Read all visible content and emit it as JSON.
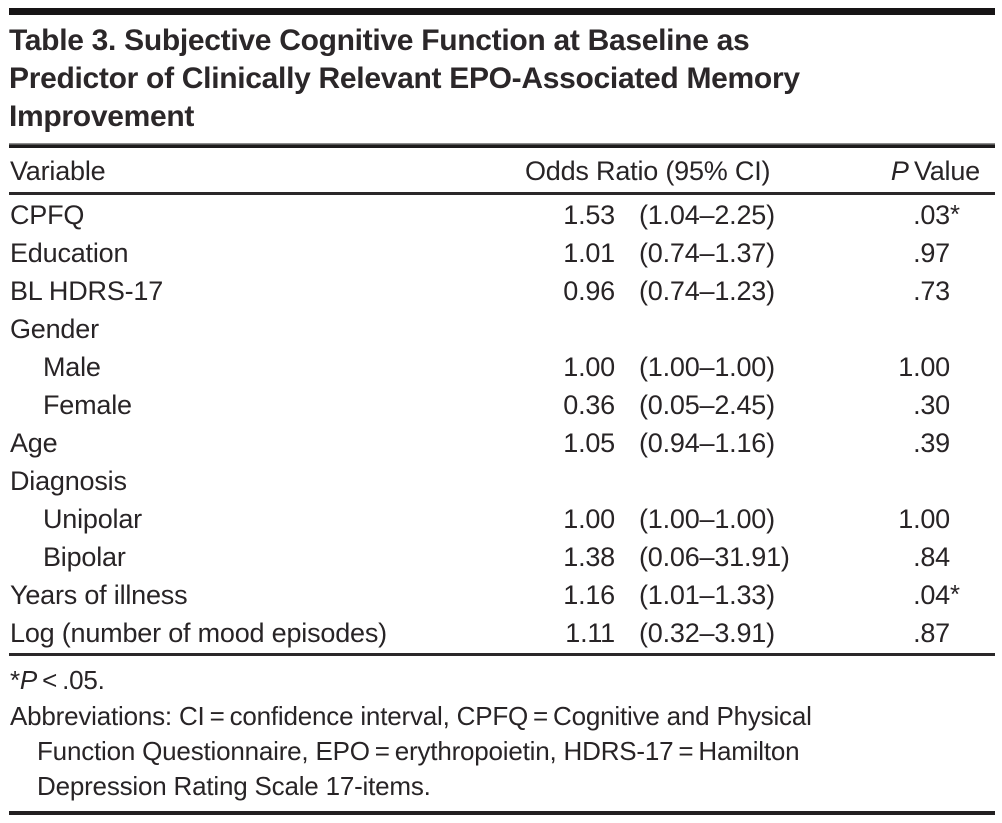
{
  "table": {
    "title_lines": [
      "Table 3. Subjective Cognitive Function at Baseline as",
      "Predictor of Clinically Relevant EPO-Associated Memory",
      "Improvement"
    ],
    "columns": {
      "variable": "Variable",
      "odds_ratio": "Odds Ratio (95% CI)",
      "p_italic": "P",
      "p_rest": " Value"
    },
    "rows": [
      {
        "variable": "CPFQ",
        "or": "1.53",
        "ci": "(1.04–2.25)",
        "p": ".03",
        "sig": "*"
      },
      {
        "variable": "Education",
        "or": "1.01",
        "ci": "(0.74–1.37)",
        "p": ".97",
        "sig": ""
      },
      {
        "variable": "BL HDRS-17",
        "or": "0.96",
        "ci": "(0.74–1.23)",
        "p": ".73",
        "sig": ""
      },
      {
        "variable": "Gender",
        "or": "",
        "ci": "",
        "p": "",
        "sig": ""
      },
      {
        "variable": "Male",
        "or": "1.00",
        "ci": "(1.00–1.00)",
        "p": "1.00",
        "sig": ""
      },
      {
        "variable": "Female",
        "or": "0.36",
        "ci": "(0.05–2.45)",
        "p": ".30",
        "sig": ""
      },
      {
        "variable": "Age",
        "or": "1.05",
        "ci": "(0.94–1.16)",
        "p": ".39",
        "sig": ""
      },
      {
        "variable": "Diagnosis",
        "or": "",
        "ci": "",
        "p": "",
        "sig": ""
      },
      {
        "variable": "Unipolar",
        "or": "1.00",
        "ci": "(1.00–1.00)",
        "p": "1.00",
        "sig": ""
      },
      {
        "variable": "Bipolar",
        "or": "1.38",
        "ci": "(0.06–31.91)",
        "p": ".84",
        "sig": ""
      },
      {
        "variable": "Years of illness",
        "or": "1.16",
        "ci": "(1.01–1.33)",
        "p": ".04",
        "sig": "*"
      },
      {
        "variable": "Log (number of mood episodes)",
        "or": "1.11",
        "ci": "(0.32–3.91)",
        "p": ".87",
        "sig": ""
      }
    ],
    "footnotes": {
      "sig_star": "*",
      "sig_p": "P",
      "sig_rest": " < .05.",
      "abbrev_lines": [
        "Abbreviations: CI = confidence interval, CPFQ = Cognitive and Physical",
        "Function Questionnaire, EPO = erythropoietin, HDRS-17 = Hamilton",
        "Depression Rating Scale 17-items."
      ]
    },
    "colors": {
      "text": "#282426",
      "rule": "#1d1b1c",
      "background": "#ffffff"
    }
  }
}
